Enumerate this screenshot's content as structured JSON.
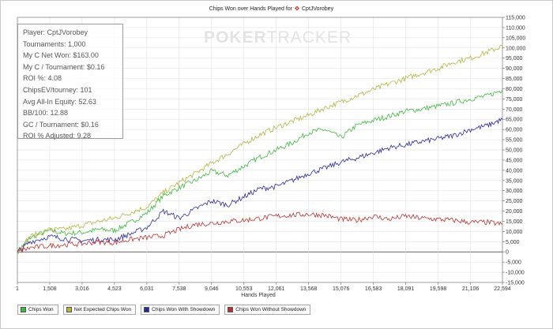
{
  "chart_data": {
    "type": "line",
    "title": "Chips Won over Hands Played for",
    "player_name": "CptJVorobey",
    "site_icon": "poker-site-icon",
    "xlabel": "Hands Played",
    "ylabel": "",
    "xlim": [
      1,
      22594
    ],
    "ylim": [
      -15000,
      115000
    ],
    "x_ticks": [
      1,
      1508,
      3016,
      4523,
      6031,
      7538,
      9046,
      10553,
      12061,
      13568,
      15076,
      16583,
      18091,
      19598,
      21106,
      22594
    ],
    "x_tick_labels": [
      "1",
      "1,508",
      "3,016",
      "4,523",
      "6,031",
      "7,538",
      "9,046",
      "10,553",
      "12,061",
      "13,568",
      "15,076",
      "16,583",
      "18,091",
      "19,598",
      "21,106",
      "22,594"
    ],
    "y_ticks": [
      -15000,
      -10000,
      -5000,
      0,
      5000,
      10000,
      15000,
      20000,
      25000,
      30000,
      35000,
      40000,
      45000,
      50000,
      55000,
      60000,
      65000,
      70000,
      75000,
      80000,
      85000,
      90000,
      95000,
      100000,
      105000,
      110000,
      115000
    ],
    "y_tick_labels": [
      "-15,000",
      "-10,000",
      "-5,000",
      "0",
      "5,000",
      "10,000",
      "15,000",
      "20,000",
      "25,000",
      "30,000",
      "35,000",
      "40,000",
      "45,000",
      "50,000",
      "55,000",
      "60,000",
      "65,000",
      "70,000",
      "75,000",
      "80,000",
      "85,000",
      "90,000",
      "95,000",
      "100,000",
      "105,000",
      "110,000",
      "115,000"
    ],
    "grid": true,
    "legend_position": "bottom-left",
    "series": [
      {
        "name": "Chips Won",
        "color": "#3cb83c",
        "x": [
          1,
          600,
          1508,
          2200,
          3016,
          3800,
          4523,
          5200,
          6031,
          6800,
          7538,
          8300,
          9046,
          9800,
          10553,
          11300,
          12061,
          12800,
          13568,
          14300,
          15076,
          15800,
          16583,
          17300,
          18091,
          18800,
          19598,
          20300,
          21106,
          21900,
          22594
        ],
        "values": [
          0,
          7000,
          10500,
          9000,
          9500,
          11000,
          10500,
          14000,
          19000,
          27500,
          31500,
          35000,
          39500,
          37500,
          42000,
          46500,
          50000,
          53500,
          58500,
          60000,
          56000,
          62000,
          64500,
          66500,
          69000,
          70000,
          71500,
          73000,
          75000,
          76500,
          79500
        ]
      },
      {
        "name": "Net Expected Chips Won",
        "color": "#b5b53a",
        "x": [
          1,
          600,
          1508,
          2200,
          3016,
          3800,
          4523,
          5200,
          6031,
          6800,
          7538,
          8300,
          9046,
          9800,
          10553,
          11300,
          12061,
          12800,
          13568,
          14300,
          15076,
          15800,
          16583,
          17300,
          18091,
          18800,
          19598,
          20300,
          21106,
          21900,
          22594
        ],
        "values": [
          0,
          7500,
          11000,
          11000,
          13000,
          15000,
          16500,
          19000,
          22000,
          29000,
          34000,
          38500,
          43500,
          48000,
          53000,
          57500,
          61000,
          64000,
          67000,
          70500,
          73500,
          76500,
          79500,
          82500,
          85000,
          87500,
          90000,
          93000,
          95000,
          98000,
          101000
        ]
      },
      {
        "name": "Chips Won With Showdown",
        "color": "#2828a0",
        "x": [
          1,
          600,
          1508,
          2200,
          3016,
          3800,
          4523,
          5200,
          6031,
          6800,
          7538,
          8300,
          9046,
          9800,
          10553,
          11300,
          12061,
          12800,
          13568,
          14300,
          15076,
          15800,
          16583,
          17300,
          18091,
          18800,
          19598,
          20300,
          21106,
          21900,
          22594
        ],
        "values": [
          0,
          5000,
          7500,
          6500,
          5500,
          6000,
          6000,
          8500,
          12000,
          20000,
          16500,
          21000,
          25000,
          23000,
          27000,
          31000,
          32000,
          35000,
          38500,
          41000,
          44000,
          46000,
          48500,
          51000,
          52500,
          54000,
          55500,
          57000,
          60000,
          62000,
          65000
        ]
      },
      {
        "name": "Chips Won Without Showdown",
        "color": "#b83030",
        "x": [
          1,
          600,
          1508,
          2200,
          3016,
          3800,
          4523,
          5200,
          6031,
          6800,
          7538,
          8300,
          9046,
          9800,
          10553,
          11300,
          12061,
          12800,
          13568,
          14300,
          15076,
          15800,
          16583,
          17300,
          18091,
          18800,
          19598,
          20300,
          21106,
          21900,
          22594
        ],
        "values": [
          0,
          2000,
          3000,
          3500,
          4000,
          5000,
          4500,
          6000,
          7000,
          8000,
          11000,
          13500,
          14000,
          15000,
          15500,
          16500,
          17500,
          18000,
          18500,
          18000,
          16000,
          15500,
          17500,
          16000,
          17500,
          16500,
          16000,
          15500,
          14500,
          14500,
          13500
        ]
      }
    ]
  },
  "stats": [
    "Player: CptJVorobey",
    "Tournaments: 1,000",
    "My C Net Won: $163.00",
    "My C / Tournament: $0.16",
    "ROI %: 4.08",
    "ChipsEV/tourney: 101",
    "Avg All-In Equity: 52.63",
    "BB/100: 12.88",
    "GC / Tournament: $0.16",
    "ROI % Adjusted: 9.28"
  ],
  "watermark": {
    "part1": "POKER",
    "part2": "TRACKER"
  },
  "colors": {
    "grid": "#dcdcdc",
    "axis": "#666666",
    "zero_line": "#333333"
  }
}
